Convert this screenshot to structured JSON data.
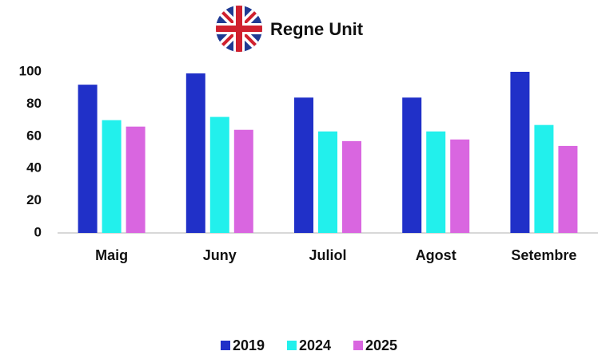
{
  "chart_data": {
    "type": "bar",
    "title": "Regne Unit",
    "categories": [
      "Maig",
      "Juny",
      "Juliol",
      "Agost",
      "Setembre"
    ],
    "series": [
      {
        "name": "2019",
        "color": "#2030c8",
        "values": [
          92,
          99,
          84,
          84,
          100
        ]
      },
      {
        "name": "2024",
        "color": "#22f0ec",
        "values": [
          70,
          72,
          63,
          63,
          67
        ]
      },
      {
        "name": "2025",
        "color": "#d966e0",
        "values": [
          66,
          64,
          57,
          58,
          54
        ]
      }
    ],
    "ylim": [
      0,
      100
    ],
    "yticks": [
      0,
      20,
      40,
      60,
      80,
      100
    ],
    "grid": false,
    "legend": "bottom"
  }
}
